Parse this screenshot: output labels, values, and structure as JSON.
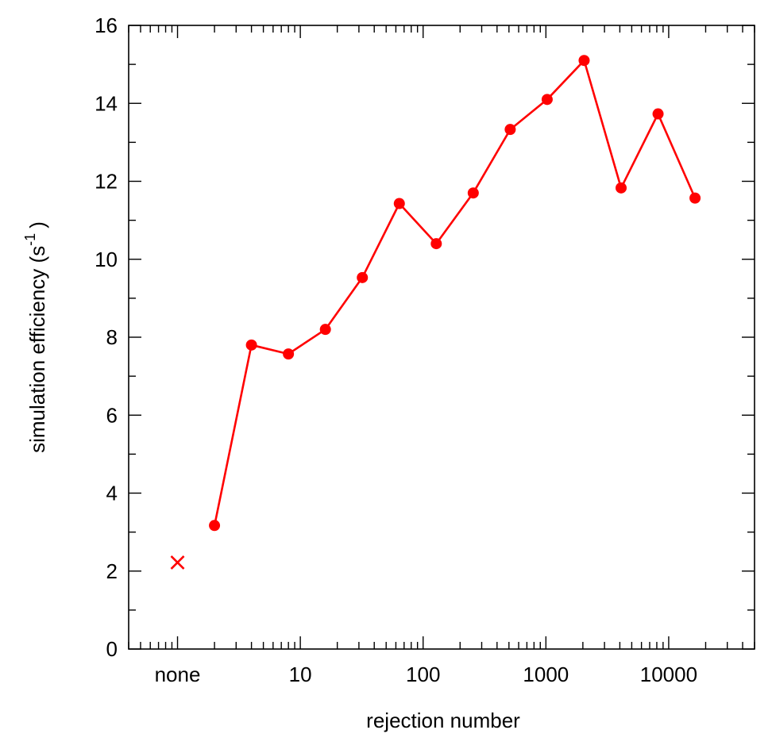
{
  "chart_data": {
    "type": "line",
    "xscale": "log",
    "xlabel": "rejection number",
    "ylabel_main": "simulation efficiency  (s",
    "ylabel_sup": "-1",
    "ylabel_close": ")",
    "ylim": [
      0,
      16
    ],
    "xlim": [
      0.4,
      50000
    ],
    "x_tick_labels": [
      {
        "value": 1,
        "label": "none"
      },
      {
        "value": 10,
        "label": "10"
      },
      {
        "value": 100,
        "label": "100"
      },
      {
        "value": 1000,
        "label": "1000"
      },
      {
        "value": 10000,
        "label": "10000"
      }
    ],
    "y_ticks": [
      0,
      2,
      4,
      6,
      8,
      10,
      12,
      14,
      16
    ],
    "y_minor_step": 1,
    "color": "#ff0000",
    "none_point": {
      "x": 1,
      "y": 2.22,
      "label": "none"
    },
    "series": [
      {
        "x": [
          2,
          4,
          8,
          16,
          32,
          64,
          128,
          256,
          512,
          1024,
          2048,
          4096,
          8192,
          16384
        ],
        "y": [
          3.17,
          7.8,
          7.57,
          8.2,
          9.53,
          11.43,
          10.4,
          11.7,
          13.33,
          14.1,
          15.1,
          11.83,
          13.73,
          11.57
        ]
      }
    ]
  }
}
